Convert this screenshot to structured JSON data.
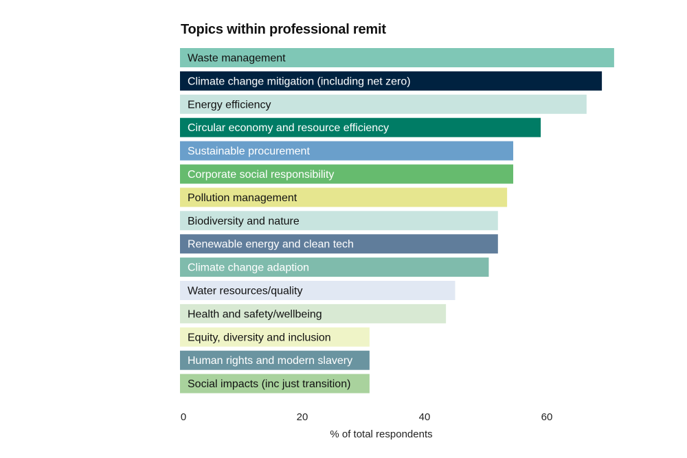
{
  "chart_data": {
    "type": "bar",
    "orientation": "horizontal",
    "title": "Topics within professional remit",
    "xlabel": "% of total respondents",
    "ylabel": "",
    "xlim": [
      0,
      71
    ],
    "xticks": [
      0,
      20,
      40,
      60
    ],
    "grid": false,
    "legend": "none",
    "categories": [
      "Waste management",
      "Climate change mitigation (including net zero)",
      "Energy efficiency",
      "Circular economy and resource efficiency",
      "Sustainable procurement",
      "Corporate social responsibility",
      "Pollution management",
      "Biodiversity and nature",
      "Renewable energy and clean tech",
      "Climate change adaption",
      "Water resources/quality",
      "Health and safety/wellbeing",
      "Equity, diversity and inclusion",
      "Human rights and modern slavery",
      "Social impacts (inc just transition)"
    ],
    "values": [
      71,
      69,
      66.5,
      59,
      54.5,
      54.5,
      53.5,
      52,
      52,
      50.5,
      45,
      43.5,
      31,
      31,
      31
    ],
    "colors": [
      "#7fc7b6",
      "#002240",
      "#c8e4df",
      "#007c65",
      "#6a9fcb",
      "#66bb6e",
      "#e6e68f",
      "#c8e4df",
      "#607d9b",
      "#7fbbac",
      "#e1e8f3",
      "#d8e9d3",
      "#eff4c7",
      "#6a94a0",
      "#a9d29d"
    ],
    "label_colors": [
      "#111111",
      "#ffffff",
      "#111111",
      "#ffffff",
      "#ffffff",
      "#ffffff",
      "#111111",
      "#111111",
      "#ffffff",
      "#ffffff",
      "#111111",
      "#111111",
      "#111111",
      "#ffffff",
      "#111111"
    ]
  }
}
